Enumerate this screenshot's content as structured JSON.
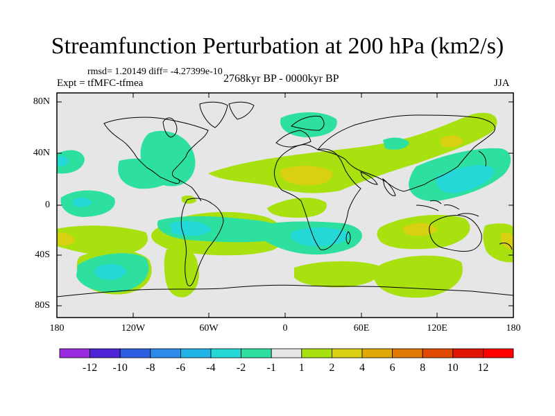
{
  "title": "Streamfunction Perturbation at 200 hPa (km2/s)",
  "stats": "rmsd= 1.20149 diff= -4.27399e-10",
  "experiment": "Expt = tfMFC-tfmea",
  "period": "2768kyr BP - 0000kyr BP",
  "season": "JJA",
  "map": {
    "projection": "cylindrical equidistant",
    "lon_range": [
      -180,
      180
    ],
    "lat_range": [
      -90,
      90
    ],
    "lat_ticks": [
      "80N",
      "40N",
      "0",
      "40S",
      "80S"
    ],
    "lon_ticks": [
      "180",
      "120W",
      "60W",
      "0",
      "60E",
      "120E",
      "180"
    ]
  },
  "colorbar": {
    "labels": [
      "-12",
      "-10",
      "-8",
      "-6",
      "-4",
      "-2",
      "-1",
      "1",
      "2",
      "4",
      "6",
      "8",
      "10",
      "12"
    ],
    "colors": [
      "#9a2be0",
      "#4e25d6",
      "#2d5fe0",
      "#2c8be8",
      "#20b3e6",
      "#25d8d8",
      "#2ee0a0",
      "#e6e6e6",
      "#a8e010",
      "#d8d010",
      "#e0a808",
      "#e07a05",
      "#e04a05",
      "#e01505",
      "#ff0000"
    ]
  },
  "palette": {
    "neutral": "#e6e6e6",
    "pos1": "#a8e010",
    "pos2": "#d8d010",
    "neg1": "#2ee0a0",
    "neg2": "#25d8d8"
  }
}
